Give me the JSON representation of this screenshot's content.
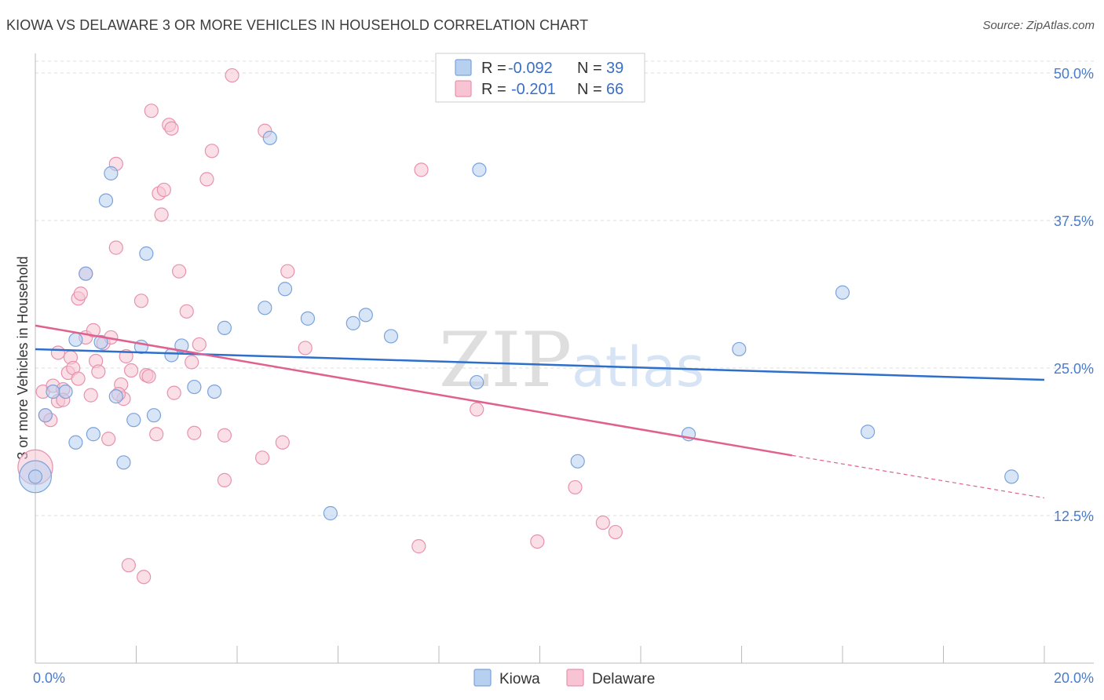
{
  "title": "KIOWA VS DELAWARE 3 OR MORE VEHICLES IN HOUSEHOLD CORRELATION CHART",
  "source": "Source: ZipAtlas.com",
  "watermark": "ZIPatlas",
  "colors": {
    "kiowa_fill": "#b8d0f0",
    "kiowa_stroke": "#7aa3dc",
    "kiowa_line": "#2f6fcc",
    "delaware_fill": "#f8c4d4",
    "delaware_stroke": "#e892ae",
    "delaware_line": "#e0608e",
    "tick_text": "#4a7cc9",
    "grid": "#dcdcdc"
  },
  "legend": {
    "rows": [
      {
        "r_label": "R =",
        "r_value": "-0.092",
        "n_label": "N =",
        "n_value": "39"
      },
      {
        "r_label": "R =",
        "r_value": "-0.201",
        "n_label": "N =",
        "n_value": "66"
      }
    ]
  },
  "bottom_legend": [
    "Kiowa",
    "Delaware"
  ],
  "chart_data": {
    "type": "scatter",
    "title": "KIOWA VS DELAWARE 3 OR MORE VEHICLES IN HOUSEHOLD CORRELATION CHART",
    "xlabel": "",
    "ylabel": "3 or more Vehicles in Household",
    "xlim": [
      0,
      20
    ],
    "ylim": [
      0,
      51
    ],
    "x_tick_labels": [
      "0.0%",
      "20.0%"
    ],
    "y_ticks": [
      12.5,
      25.0,
      37.5,
      50.0
    ],
    "y_tick_labels": [
      "12.5%",
      "25.0%",
      "37.5%",
      "50.0%"
    ],
    "grid": true,
    "series": [
      {
        "name": "Kiowa",
        "r": -0.092,
        "n": 39,
        "trend": {
          "x0": 0,
          "y0": 26.6,
          "x1": 20,
          "y1": 24.0
        },
        "points": [
          [
            0.0,
            15.8,
            2.4
          ],
          [
            0.2,
            21.0,
            1.0
          ],
          [
            0.35,
            23.0,
            1.0
          ],
          [
            0.6,
            23.0,
            1.0
          ],
          [
            0.8,
            18.7,
            1.0
          ],
          [
            0.8,
            27.4,
            1.0
          ],
          [
            1.0,
            33.0,
            1.0
          ],
          [
            1.15,
            19.4,
            1.0
          ],
          [
            1.3,
            27.2,
            1.0
          ],
          [
            1.4,
            39.2,
            1.0
          ],
          [
            1.5,
            41.5,
            1.0
          ],
          [
            1.6,
            22.6,
            1.0
          ],
          [
            1.75,
            17.0,
            1.0
          ],
          [
            1.95,
            20.6,
            1.0
          ],
          [
            2.1,
            26.8,
            1.0
          ],
          [
            2.2,
            34.7,
            1.0
          ],
          [
            2.35,
            21.0,
            1.0
          ],
          [
            2.7,
            26.1,
            1.0
          ],
          [
            2.9,
            26.9,
            1.0
          ],
          [
            3.15,
            23.4,
            1.0
          ],
          [
            3.55,
            23.0,
            1.0
          ],
          [
            3.75,
            28.4,
            1.0
          ],
          [
            4.55,
            30.1,
            1.0
          ],
          [
            4.65,
            44.5,
            1.0
          ],
          [
            4.95,
            31.7,
            1.0
          ],
          [
            5.4,
            29.2,
            1.0
          ],
          [
            5.85,
            12.7,
            1.0
          ],
          [
            6.3,
            28.8,
            1.0
          ],
          [
            6.55,
            29.5,
            1.0
          ],
          [
            7.05,
            27.7,
            1.0
          ],
          [
            8.75,
            23.8,
            1.0
          ],
          [
            8.8,
            41.8,
            1.0
          ],
          [
            10.75,
            17.1,
            1.0
          ],
          [
            12.95,
            19.4,
            1.0
          ],
          [
            13.95,
            26.6,
            1.0
          ],
          [
            16.0,
            31.4,
            1.0
          ],
          [
            16.5,
            19.6,
            1.0
          ],
          [
            19.35,
            15.8,
            1.0
          ],
          [
            0.0,
            15.8,
            1.0
          ]
        ]
      },
      {
        "name": "Delaware",
        "r": -0.201,
        "n": 66,
        "trend": {
          "x0": 0,
          "y0": 28.6,
          "x1": 15.0,
          "y1": 17.6,
          "dash_x1": 20,
          "dash_y1": 14.0
        },
        "points": [
          [
            0.0,
            16.6,
            2.6
          ],
          [
            0.15,
            23.0,
            1.0
          ],
          [
            0.2,
            21.0,
            1.0
          ],
          [
            0.3,
            20.6,
            1.0
          ],
          [
            0.35,
            23.5,
            1.0
          ],
          [
            0.45,
            22.2,
            1.0
          ],
          [
            0.45,
            26.3,
            1.0
          ],
          [
            0.55,
            23.2,
            1.0
          ],
          [
            0.55,
            22.3,
            1.0
          ],
          [
            0.65,
            24.6,
            1.0
          ],
          [
            0.7,
            25.9,
            1.0
          ],
          [
            0.75,
            25.0,
            1.0
          ],
          [
            0.85,
            30.9,
            1.0
          ],
          [
            0.85,
            24.1,
            1.0
          ],
          [
            0.9,
            31.3,
            1.0
          ],
          [
            1.0,
            27.6,
            1.0
          ],
          [
            1.0,
            33.0,
            1.0
          ],
          [
            1.1,
            22.7,
            1.0
          ],
          [
            1.15,
            28.2,
            1.0
          ],
          [
            1.2,
            25.6,
            1.0
          ],
          [
            1.25,
            24.7,
            1.0
          ],
          [
            1.35,
            27.1,
            1.0
          ],
          [
            1.45,
            19.0,
            1.0
          ],
          [
            1.5,
            27.6,
            1.0
          ],
          [
            1.6,
            35.2,
            1.0
          ],
          [
            1.6,
            42.3,
            1.0
          ],
          [
            1.7,
            23.6,
            1.0
          ],
          [
            1.75,
            22.4,
            1.0
          ],
          [
            1.8,
            26.0,
            1.0
          ],
          [
            1.85,
            8.3,
            1.0
          ],
          [
            1.9,
            24.8,
            1.0
          ],
          [
            2.1,
            30.7,
            1.0
          ],
          [
            2.15,
            7.3,
            1.0
          ],
          [
            2.2,
            24.4,
            1.0
          ],
          [
            2.25,
            24.3,
            1.0
          ],
          [
            2.3,
            46.8,
            1.0
          ],
          [
            2.4,
            19.4,
            1.0
          ],
          [
            2.45,
            39.8,
            1.0
          ],
          [
            2.5,
            38.0,
            1.0
          ],
          [
            2.55,
            40.1,
            1.0
          ],
          [
            2.65,
            45.6,
            1.0
          ],
          [
            2.7,
            45.3,
            1.0
          ],
          [
            2.75,
            22.9,
            1.0
          ],
          [
            2.85,
            33.2,
            1.0
          ],
          [
            3.0,
            29.8,
            1.0
          ],
          [
            3.1,
            25.5,
            1.0
          ],
          [
            3.15,
            19.5,
            1.0
          ],
          [
            3.25,
            27.0,
            1.0
          ],
          [
            3.4,
            41.0,
            1.0
          ],
          [
            3.5,
            43.4,
            1.0
          ],
          [
            3.75,
            19.3,
            1.0
          ],
          [
            3.75,
            15.5,
            1.0
          ],
          [
            3.9,
            49.8,
            1.0
          ],
          [
            4.5,
            17.4,
            1.0
          ],
          [
            4.55,
            45.1,
            1.0
          ],
          [
            4.9,
            18.7,
            1.0
          ],
          [
            5.0,
            33.2,
            1.0
          ],
          [
            5.35,
            26.7,
            1.0
          ],
          [
            7.6,
            9.9,
            1.0
          ],
          [
            7.65,
            41.8,
            1.0
          ],
          [
            8.75,
            21.5,
            1.0
          ],
          [
            9.95,
            10.3,
            1.0
          ],
          [
            10.7,
            14.9,
            1.0
          ],
          [
            11.25,
            11.9,
            1.0
          ],
          [
            11.5,
            11.1,
            1.0
          ],
          [
            1.65,
            22.8,
            1.0
          ]
        ]
      }
    ]
  }
}
